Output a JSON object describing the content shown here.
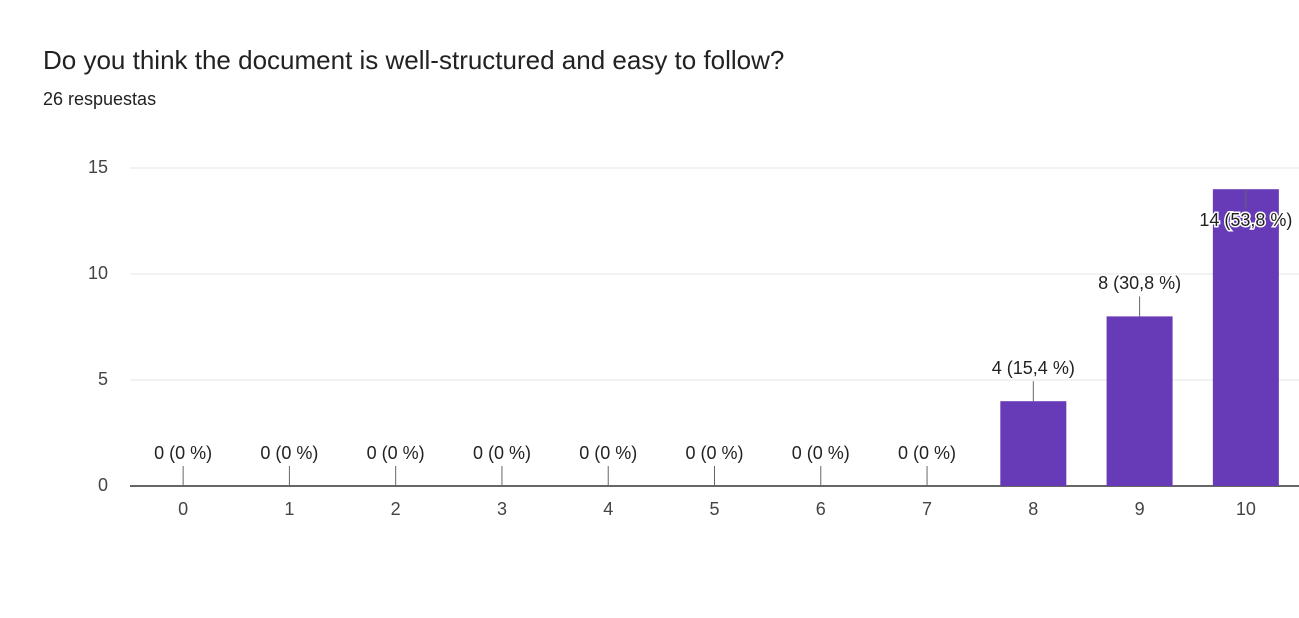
{
  "chart_data": {
    "type": "bar",
    "title": "Do you think the document is well-structured and easy to follow?",
    "subtitle": "26 respuestas",
    "categories": [
      "0",
      "1",
      "2",
      "3",
      "4",
      "5",
      "6",
      "7",
      "8",
      "9",
      "10"
    ],
    "values": [
      0,
      0,
      0,
      0,
      0,
      0,
      0,
      0,
      4,
      8,
      14
    ],
    "value_labels": [
      "0 (0 %)",
      "0 (0 %)",
      "0 (0 %)",
      "0 (0 %)",
      "0 (0 %)",
      "0 (0 %)",
      "0 (0 %)",
      "0 (0 %)",
      "4 (15,4 %)",
      "8 (30,8 %)",
      "14 (53,8 %)"
    ],
    "color": "#673ab7",
    "ylim": [
      0,
      15
    ],
    "yticks": [
      0,
      5,
      10,
      15
    ],
    "grid": true
  }
}
